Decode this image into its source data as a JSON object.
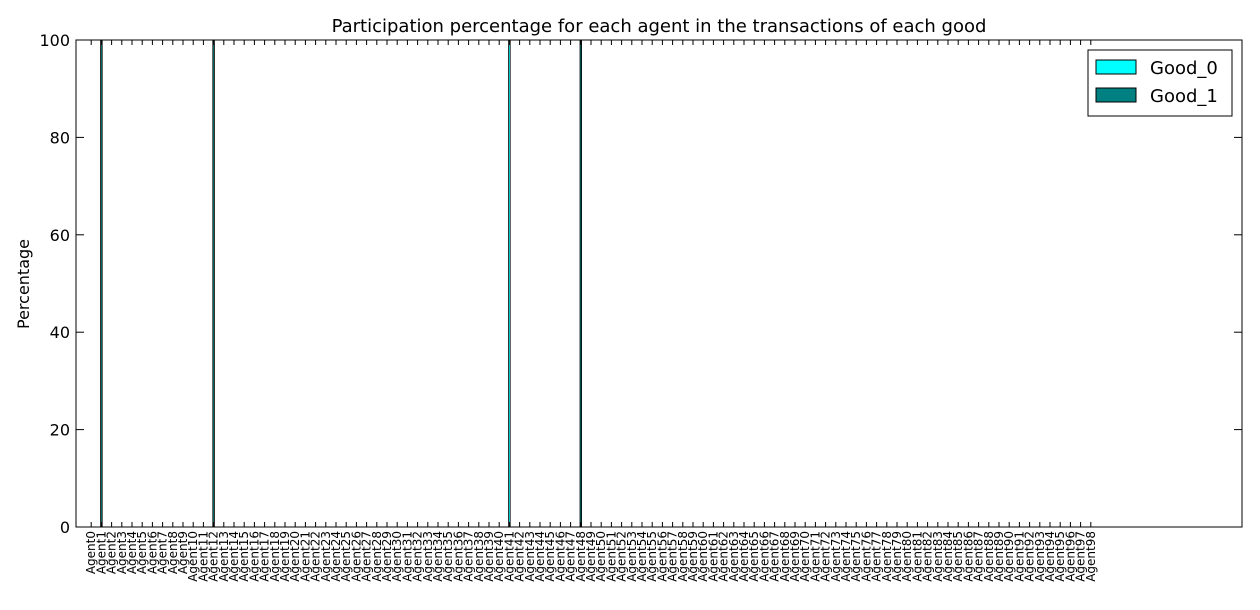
{
  "chart_data": {
    "type": "bar",
    "title": "Participation percentage for each agent in the transactions of each good",
    "xlabel": "",
    "ylabel": "Percentage",
    "ylim": [
      0,
      100
    ],
    "yticks": [
      "0",
      "20",
      "40",
      "60",
      "80",
      "100"
    ],
    "grid": false,
    "legend_position": "top-right",
    "categories": [
      "Agent0",
      "Agent1",
      "Agent2",
      "Agent3",
      "Agent4",
      "Agent5",
      "Agent6",
      "Agent7",
      "Agent8",
      "Agent9",
      "Agent10",
      "Agent11",
      "Agent12",
      "Agent13",
      "Agent14",
      "Agent15",
      "Agent16",
      "Agent17",
      "Agent18",
      "Agent19",
      "Agent20",
      "Agent21",
      "Agent22",
      "Agent23",
      "Agent24",
      "Agent25",
      "Agent26",
      "Agent27",
      "Agent28",
      "Agent29",
      "Agent30",
      "Agent31",
      "Agent32",
      "Agent33",
      "Agent34",
      "Agent35",
      "Agent36",
      "Agent37",
      "Agent38",
      "Agent39",
      "Agent40",
      "Agent41",
      "Agent42",
      "Agent43",
      "Agent44",
      "Agent45",
      "Agent46",
      "Agent47",
      "Agent48",
      "Agent49",
      "Agent50",
      "Agent51",
      "Agent52",
      "Agent53",
      "Agent54",
      "Agent55",
      "Agent56",
      "Agent57",
      "Agent58",
      "Agent59",
      "Agent60",
      "Agent61",
      "Agent62",
      "Agent63",
      "Agent64",
      "Agent65",
      "Agent66",
      "Agent67",
      "Agent68",
      "Agent69",
      "Agent70",
      "Agent71",
      "Agent72",
      "Agent73",
      "Agent74",
      "Agent75",
      "Agent76",
      "Agent77",
      "Agent78",
      "Agent79",
      "Agent80",
      "Agent81",
      "Agent82",
      "Agent83",
      "Agent84",
      "Agent85",
      "Agent86",
      "Agent87",
      "Agent88",
      "Agent89",
      "Agent90",
      "Agent91",
      "Agent92",
      "Agent93",
      "Agent94",
      "Agent95",
      "Agent96",
      "Agent97",
      "Agent98"
    ],
    "series": [
      {
        "name": "Good_0",
        "color": "#00ffff",
        "values": [
          0,
          0,
          0,
          0,
          0,
          0,
          0,
          0,
          0,
          0,
          0,
          0,
          0,
          0,
          0,
          0,
          0,
          0,
          0,
          0,
          0,
          0,
          0,
          0,
          0,
          0,
          0,
          0,
          0,
          0,
          0,
          0,
          0,
          0,
          0,
          0,
          0,
          0,
          0,
          0,
          0,
          100,
          0,
          0,
          0,
          0,
          0,
          0,
          0,
          0,
          0,
          0,
          0,
          0,
          0,
          0,
          0,
          0,
          0,
          0,
          0,
          0,
          0,
          0,
          0,
          0,
          0,
          0,
          0,
          0,
          0,
          0,
          0,
          0,
          0,
          0,
          0,
          0,
          0,
          0,
          0,
          0,
          0,
          0,
          0,
          0,
          0,
          0,
          0,
          0,
          0,
          0,
          0,
          0,
          0,
          0,
          0,
          0,
          0
        ]
      },
      {
        "name": "Good_1",
        "color": "#008080",
        "values": [
          0,
          100,
          0,
          0,
          0,
          0,
          0,
          0,
          0,
          0,
          0,
          0,
          100,
          0,
          0,
          0,
          0,
          0,
          0,
          0,
          0,
          0,
          0,
          0,
          0,
          0,
          0,
          0,
          0,
          0,
          0,
          0,
          0,
          0,
          0,
          0,
          0,
          0,
          0,
          0,
          0,
          0,
          0,
          0,
          0,
          0,
          0,
          0,
          100,
          0,
          0,
          0,
          0,
          0,
          0,
          0,
          0,
          0,
          0,
          0,
          0,
          0,
          0,
          0,
          0,
          0,
          0,
          0,
          0,
          0,
          0,
          0,
          0,
          0,
          0,
          0,
          0,
          0,
          0,
          0,
          0,
          0,
          0,
          0,
          0,
          0,
          0,
          0,
          0,
          0,
          0,
          0,
          0,
          0,
          0,
          0,
          0,
          0,
          0
        ]
      }
    ]
  }
}
